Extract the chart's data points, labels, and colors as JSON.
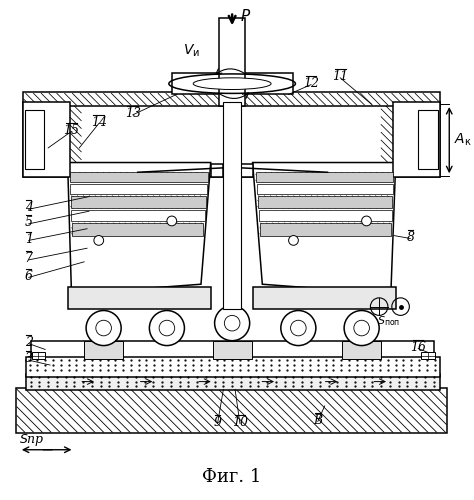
{
  "title": "Фиг. 1",
  "bg_color": "#ffffff",
  "fig_width": 4.74,
  "fig_height": 5.0,
  "dpi": 100
}
